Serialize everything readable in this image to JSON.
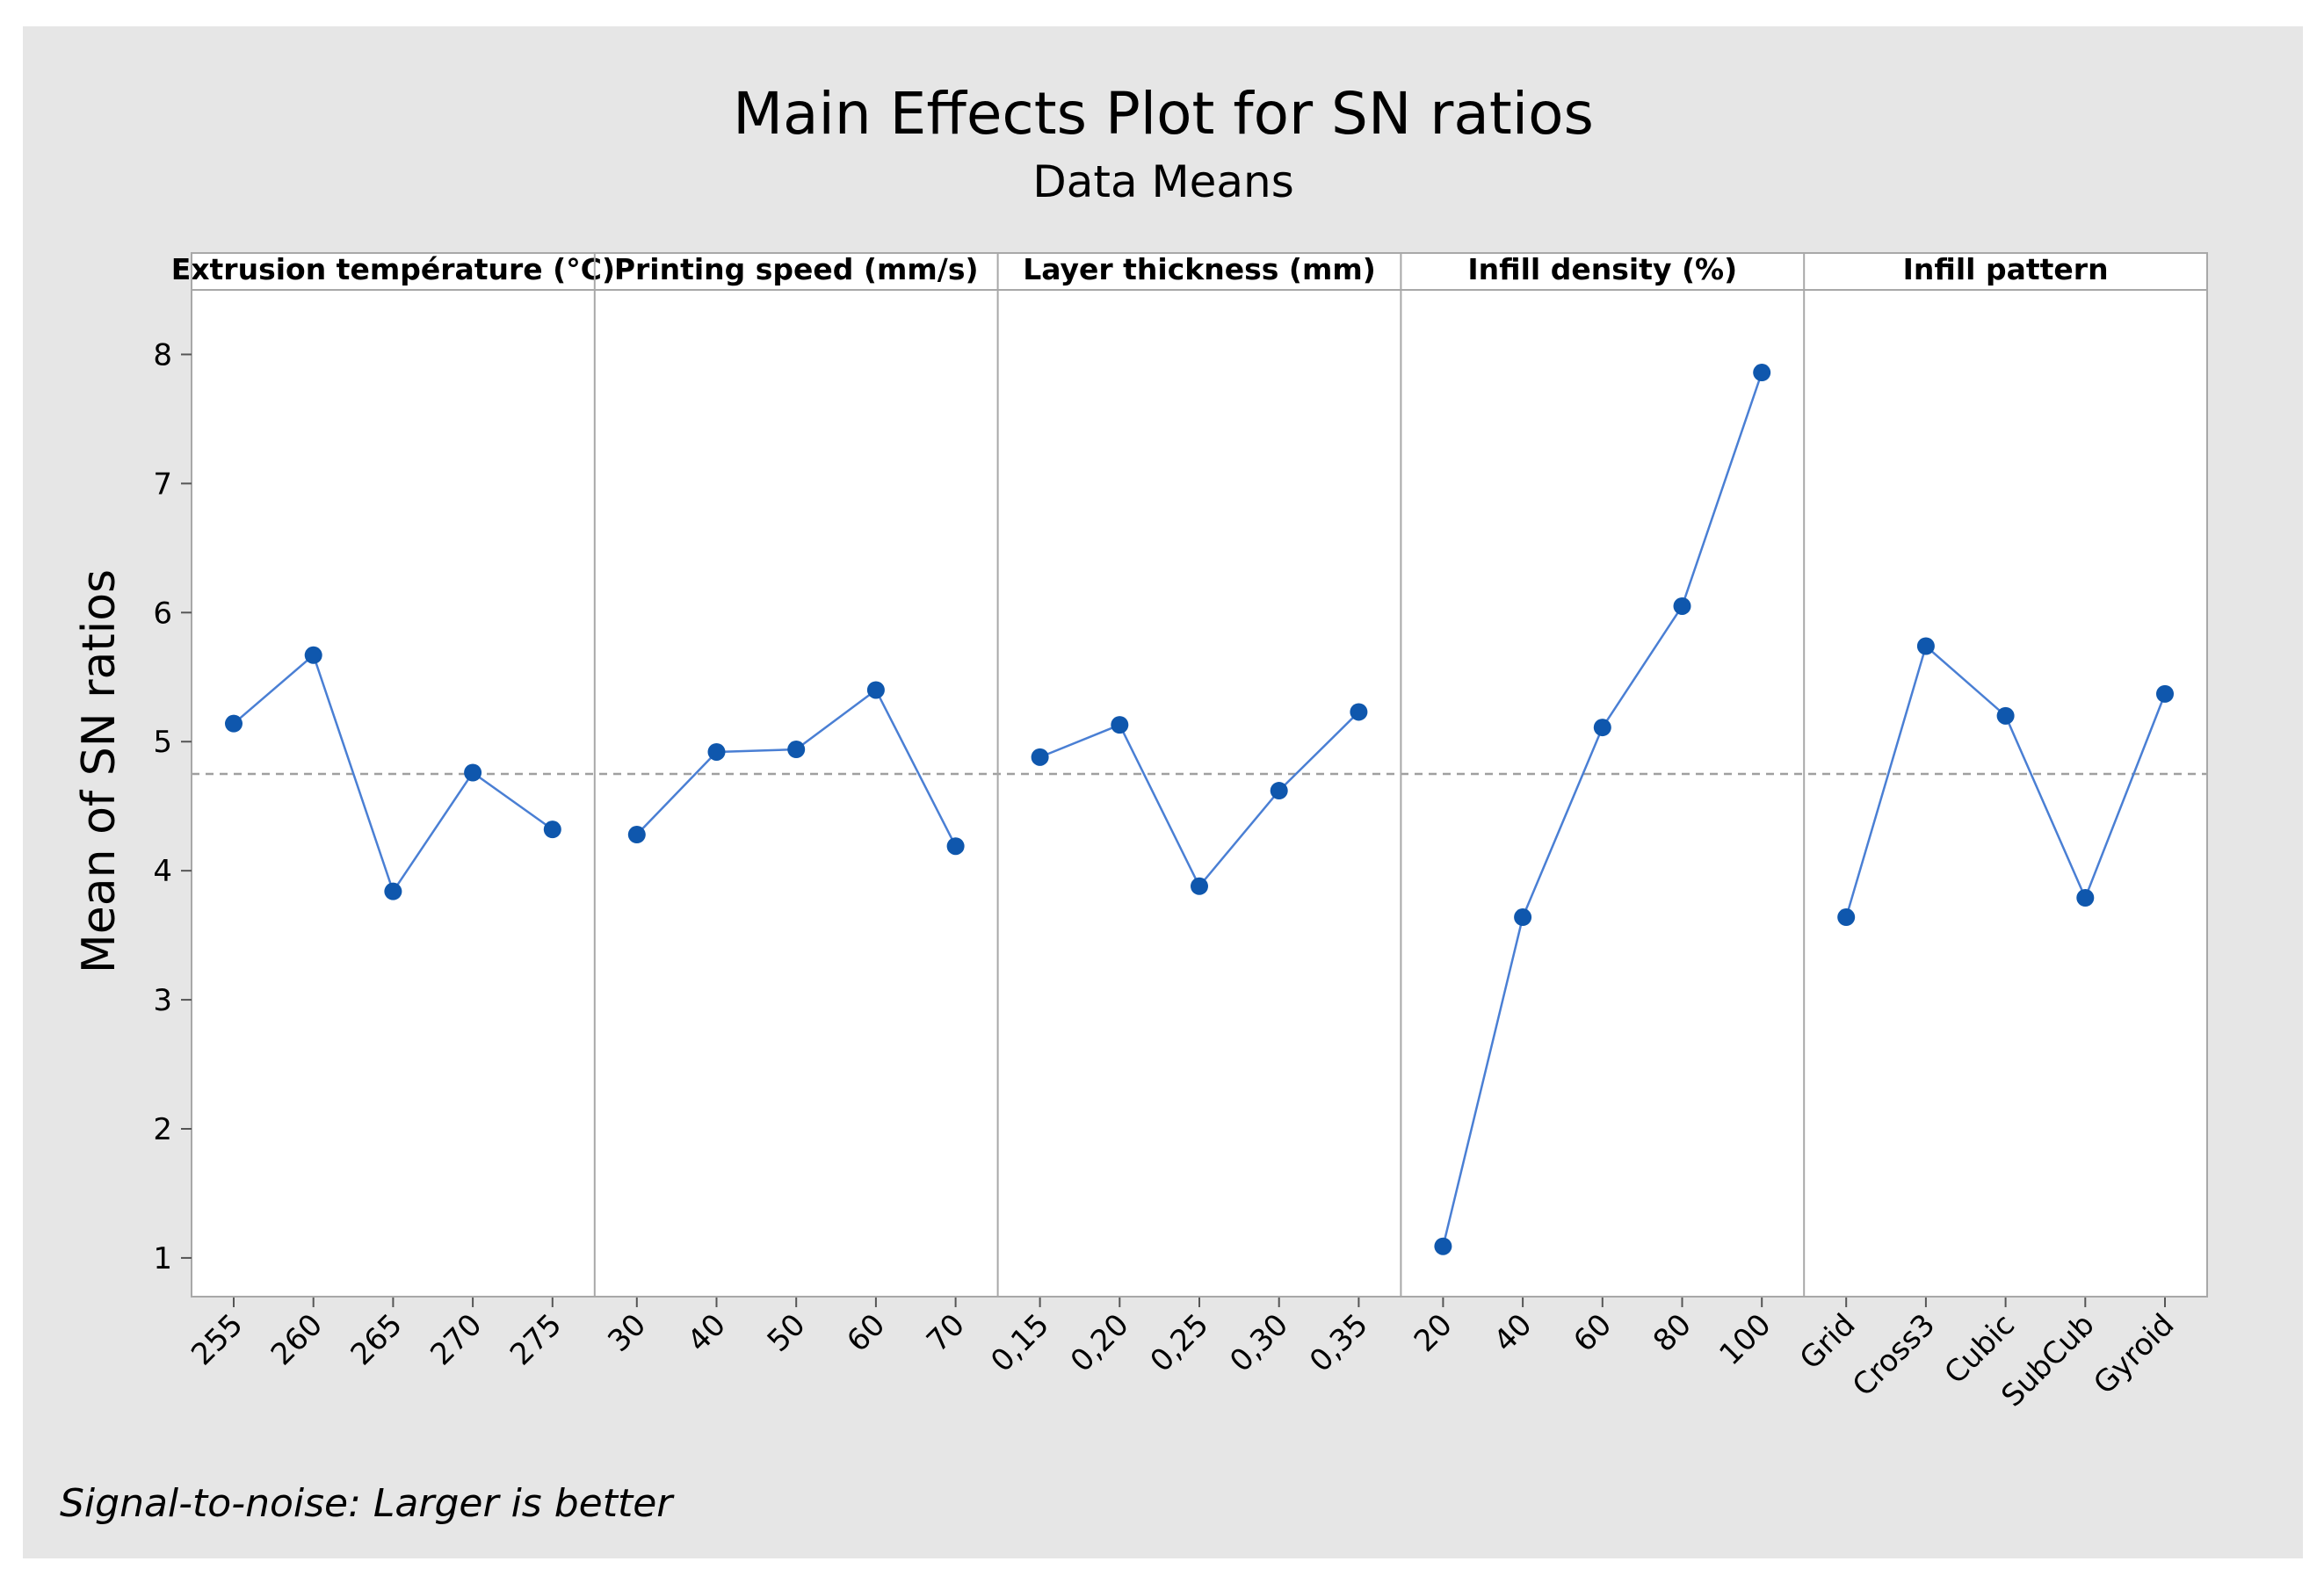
{
  "chart_data": {
    "type": "line",
    "title": "Main Effects Plot for SN ratios",
    "subtitle": "Data Means",
    "ylabel": "Mean of SN ratios",
    "ylim": [
      0.7,
      8.5
    ],
    "yticks": [
      1,
      2,
      3,
      4,
      5,
      6,
      7,
      8
    ],
    "grand_mean": 4.75,
    "footnote": "Signal-to-noise: Larger is better",
    "colors": {
      "line": "#4a7fd4",
      "marker": "#0f57ad",
      "mean_line": "#a0a0a0",
      "frame": "#a8a8a8",
      "background": "#e6e6e6",
      "plot_bg": "#ffffff"
    },
    "panels": [
      {
        "label": "Extrusion température (°C)",
        "categories": [
          "255",
          "260",
          "265",
          "270",
          "275"
        ],
        "values": [
          5.14,
          5.67,
          3.84,
          4.76,
          4.32
        ]
      },
      {
        "label": "Printing speed (mm/s)",
        "categories": [
          "30",
          "40",
          "50",
          "60",
          "70"
        ],
        "values": [
          4.28,
          4.92,
          4.94,
          5.4,
          4.19
        ]
      },
      {
        "label": "Layer thickness (mm)",
        "categories": [
          "0,15",
          "0,20",
          "0,25",
          "0,30",
          "0,35"
        ],
        "values": [
          4.88,
          5.13,
          3.88,
          4.62,
          5.23
        ]
      },
      {
        "label": "Infill density (%)",
        "categories": [
          "20",
          "40",
          "60",
          "80",
          "100"
        ],
        "values": [
          1.09,
          3.64,
          5.11,
          6.05,
          7.86
        ]
      },
      {
        "label": "Infill pattern",
        "categories": [
          "Grid",
          "Cross3",
          "Cubic",
          "SubCub",
          "Gyroid"
        ],
        "values": [
          3.64,
          5.74,
          5.2,
          3.79,
          5.37
        ]
      }
    ]
  }
}
